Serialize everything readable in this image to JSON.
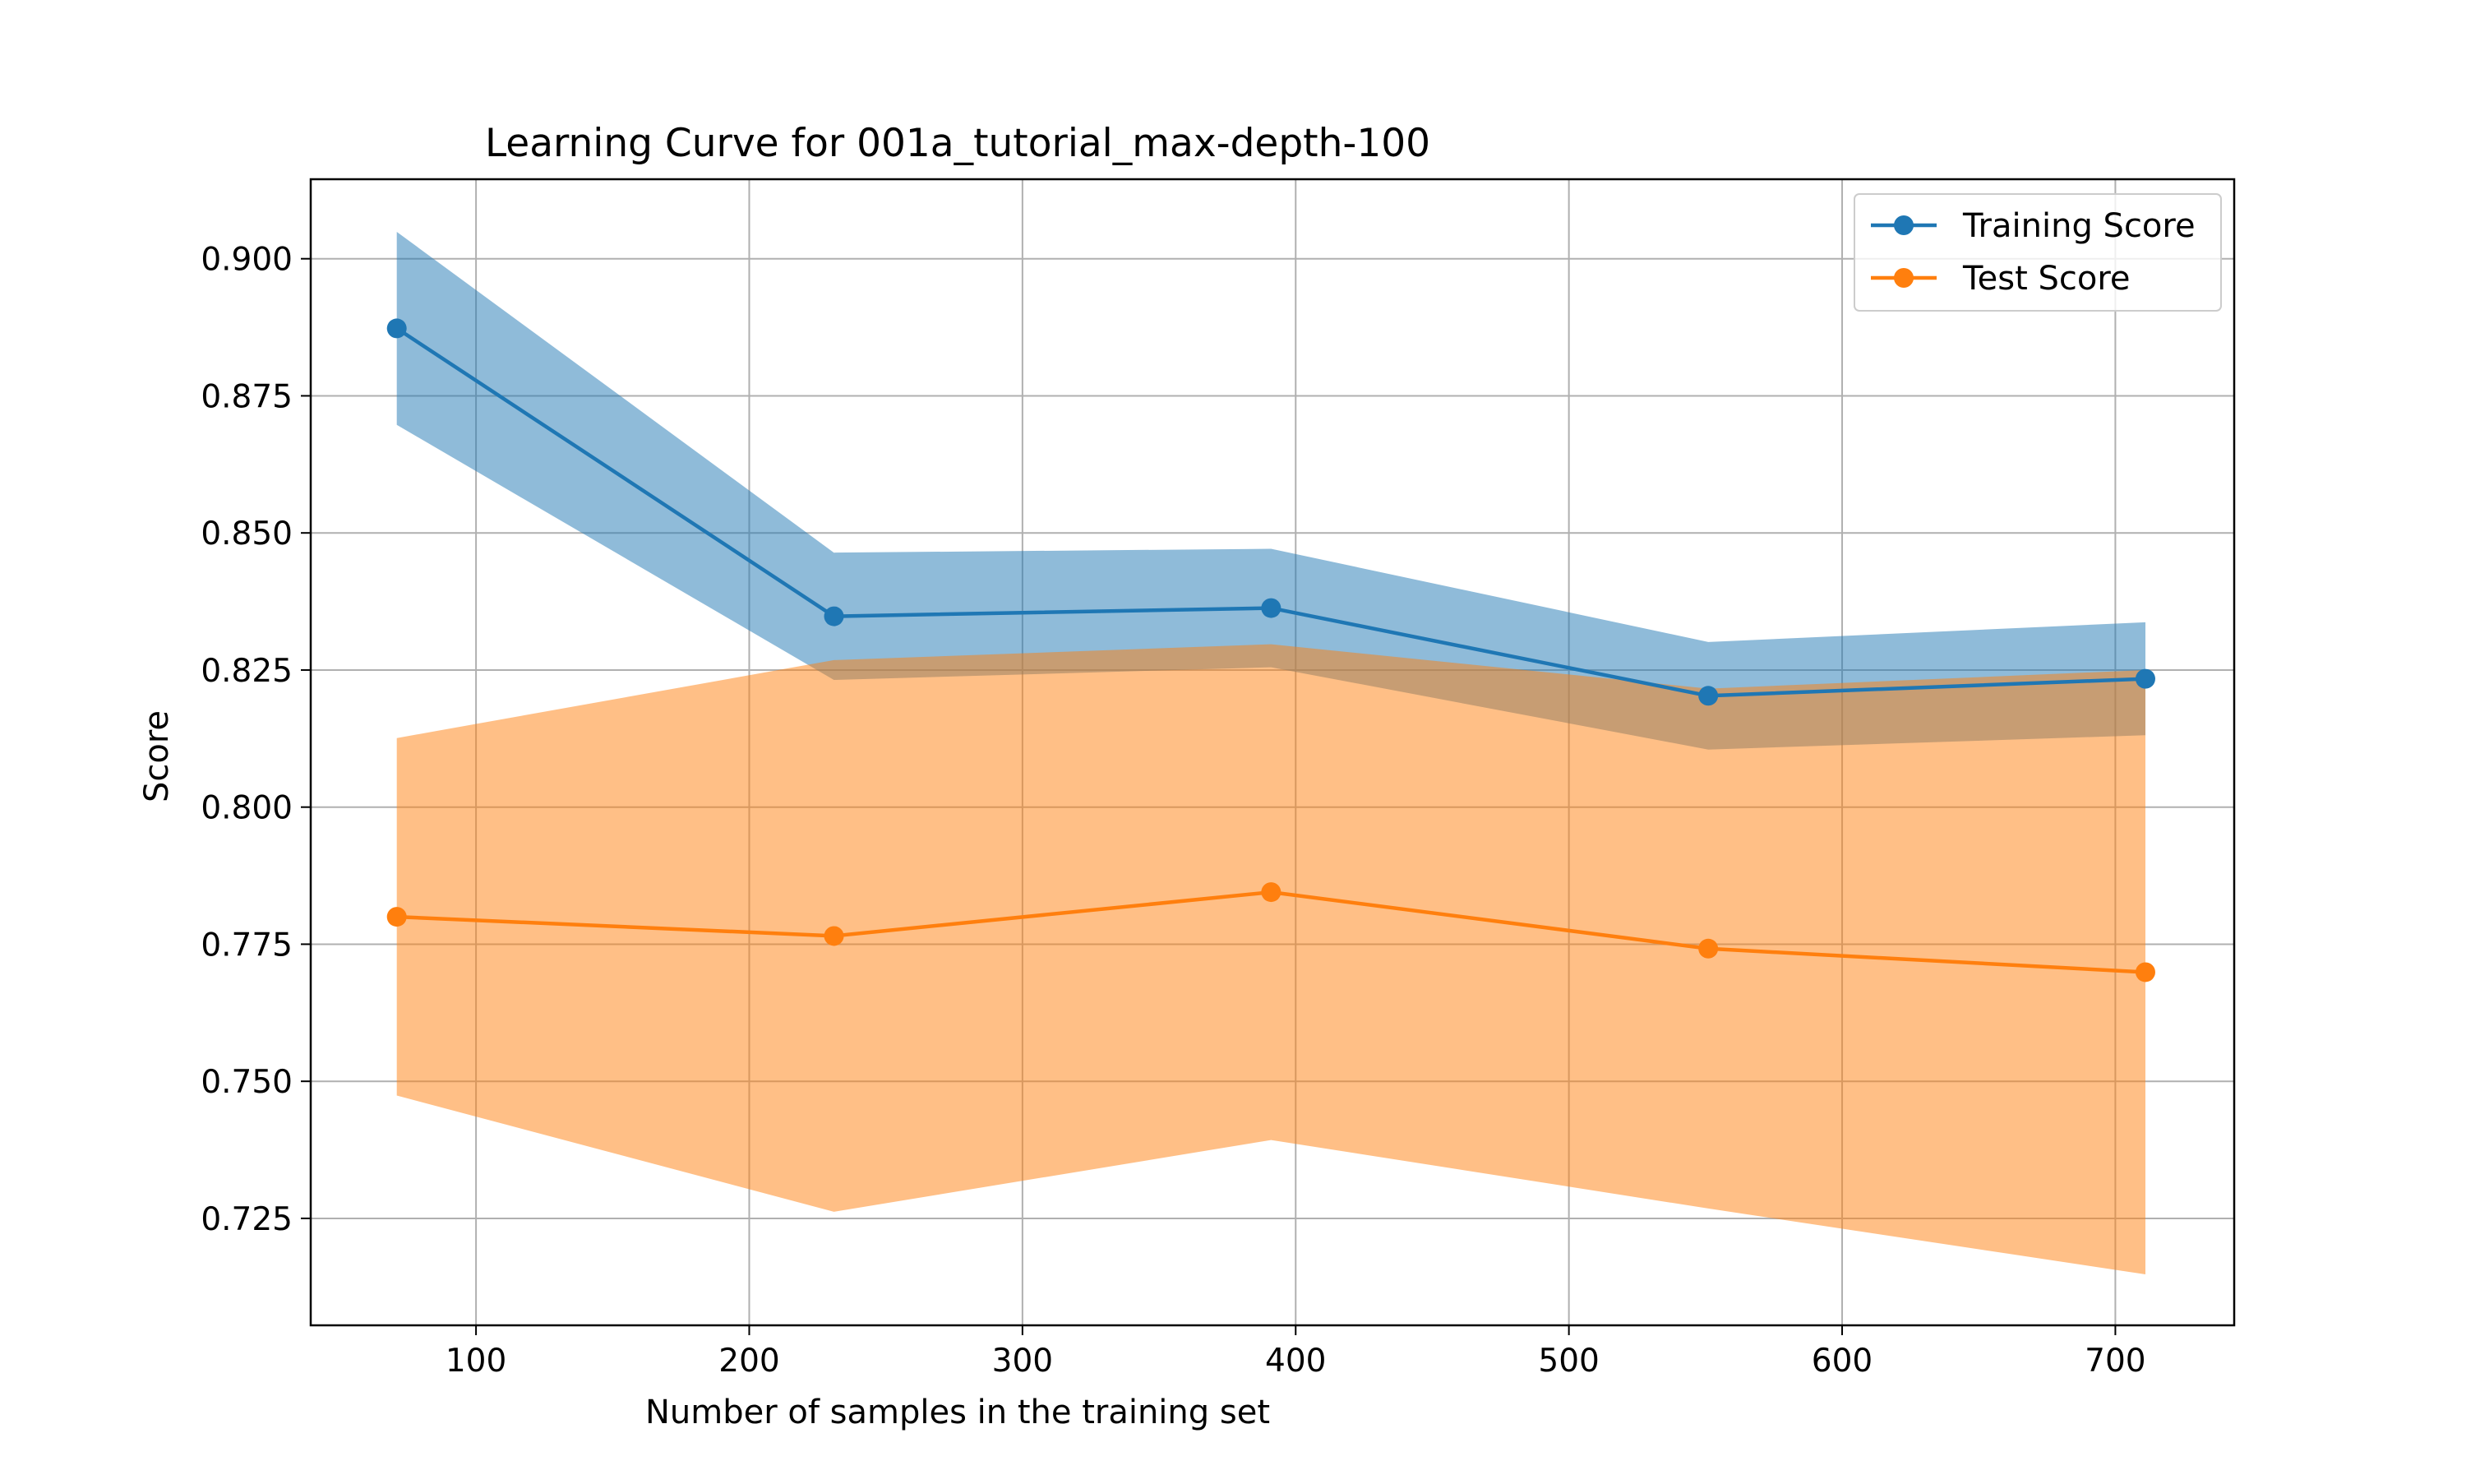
{
  "chart_data": {
    "type": "line",
    "title": "Learning Curve for 001a_tutorial_max-depth-100",
    "xlabel": "Number of samples in the training set",
    "ylabel": "Score",
    "x": [
      71,
      231,
      391,
      551,
      711
    ],
    "xlim": [
      39.5,
      743.5
    ],
    "ylim": [
      0.7055,
      0.9145
    ],
    "xticks": [
      100,
      200,
      300,
      400,
      500,
      600,
      700
    ],
    "xtick_labels": [
      "100",
      "200",
      "300",
      "400",
      "500",
      "600",
      "700"
    ],
    "yticks": [
      0.725,
      0.75,
      0.775,
      0.8,
      0.825,
      0.85,
      0.875,
      0.9
    ],
    "ytick_labels": [
      "0.725",
      "0.750",
      "0.775",
      "0.800",
      "0.825",
      "0.850",
      "0.875",
      "0.900"
    ],
    "grid": true,
    "legend_position": "top-right",
    "series": [
      {
        "name": "Training Score",
        "color": "#1f77b4",
        "band_color": "#1f77b4",
        "values": [
          0.8873,
          0.8348,
          0.8363,
          0.8203,
          0.8234
        ],
        "band_lower": [
          0.8697,
          0.8232,
          0.8255,
          0.8105,
          0.8131
        ],
        "band_upper": [
          0.9049,
          0.8464,
          0.8471,
          0.8301,
          0.8337
        ]
      },
      {
        "name": "Test Score",
        "color": "#ff7f0e",
        "band_color": "#ff7f0e",
        "values": [
          0.78,
          0.7765,
          0.7845,
          0.7742,
          0.7699
        ],
        "band_lower": [
          0.7474,
          0.7262,
          0.7393,
          0.7268,
          0.7148
        ],
        "band_upper": [
          0.8126,
          0.8268,
          0.8297,
          0.8216,
          0.825
        ]
      }
    ]
  }
}
